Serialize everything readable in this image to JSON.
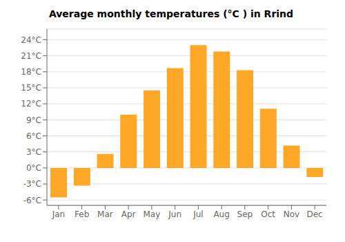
{
  "chart_data": {
    "type": "bar",
    "title": "Average monthly temperatures (°C ) in Rrind",
    "categories": [
      "Jan",
      "Feb",
      "Mar",
      "Apr",
      "May",
      "Jun",
      "Jul",
      "Aug",
      "Sep",
      "Oct",
      "Nov",
      "Dec"
    ],
    "values": [
      -5.5,
      -3.3,
      2.6,
      10.0,
      14.5,
      18.7,
      23.0,
      21.8,
      18.3,
      11.1,
      4.2,
      -1.7
    ],
    "color": "#FFA726",
    "ylim": [
      -7,
      26
    ],
    "yticks": [
      {
        "value": -6,
        "label": "-6°C"
      },
      {
        "value": -3,
        "label": "-3°C"
      },
      {
        "value": 0,
        "label": "0°C"
      },
      {
        "value": 3,
        "label": "3°C"
      },
      {
        "value": 6,
        "label": "6°C"
      },
      {
        "value": 9,
        "label": "9°C"
      },
      {
        "value": 12,
        "label": "12°C"
      },
      {
        "value": 15,
        "label": "15°C"
      },
      {
        "value": 18,
        "label": "18°C"
      },
      {
        "value": 21,
        "label": "21°C"
      },
      {
        "value": 24,
        "label": "24°C"
      }
    ],
    "grid": true
  }
}
